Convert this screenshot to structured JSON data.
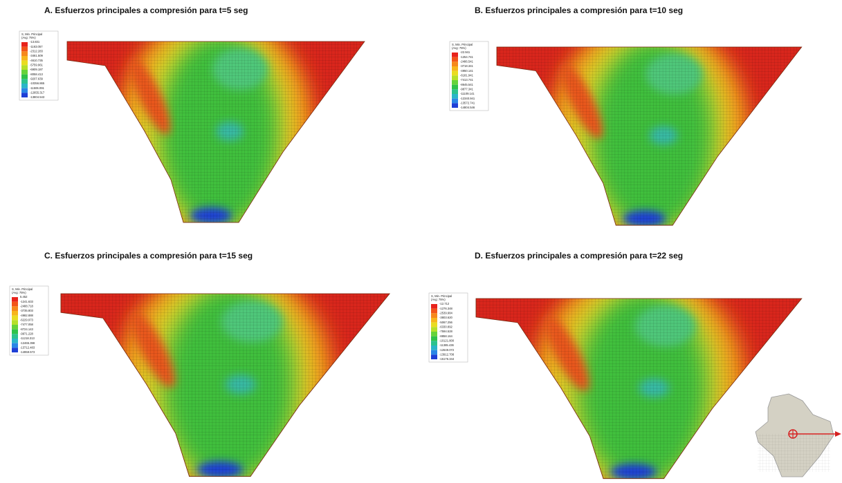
{
  "panels": [
    {
      "title": "A. Esfuerzos principales a compresión para t=5 seg",
      "legend": {
        "title": "S, Min. Principal",
        "subtitle": "(Avg: 75%)",
        "values": [
          "-13.831",
          "-1163.057",
          "-2312.283",
          "-3461.509",
          "-4610.735",
          "-5759.961",
          "-6909.187",
          "-8058.413",
          "-9207.639",
          "-10356.865",
          "-11506.091",
          "-12655.317",
          "-13804.543"
        ]
      }
    },
    {
      "title": "B. Esfuerzos principales a compresión para t=10 seg",
      "legend": {
        "title": "S, Min. Principal",
        "subtitle": "(Avg: 75%)",
        "values": [
          "-22.941",
          "-1254.741",
          "-2486.541",
          "-3718.341",
          "-4950.141",
          "-6181.941",
          "-7413.741",
          "-8645.541",
          "-9877.341",
          "-11109.141",
          "-12340.941",
          "-13572.741",
          "-14804.546"
        ]
      }
    },
    {
      "title": "C. Esfuerzos principales a compresión para t=15 seg",
      "legend": {
        "title": "S, Min. Principal",
        "subtitle": "(Avg: 75%)",
        "values": [
          "5.452",
          "-1241.633",
          "-2488.718",
          "-3735.803",
          "-4982.888",
          "-6229.973",
          "-7477.058",
          "-8724.143",
          "-9971.228",
          "-11218.313",
          "-12465.398",
          "-13712.483",
          "-14959.573"
        ]
      }
    },
    {
      "title": "D. Esfuerzos principales a compresión para t=22 seg",
      "legend": {
        "title": "S, Min. Principal",
        "subtitle": "(Avg: 75%)",
        "values": [
          "-12.712",
          "-1276.348",
          "-2539.984",
          "-3803.620",
          "-5067.256",
          "-6330.892",
          "-7594.528",
          "-8858.164",
          "-10121.800",
          "-11385.436",
          "-12649.072",
          "-13912.708",
          "-15176.344"
        ]
      }
    }
  ]
}
